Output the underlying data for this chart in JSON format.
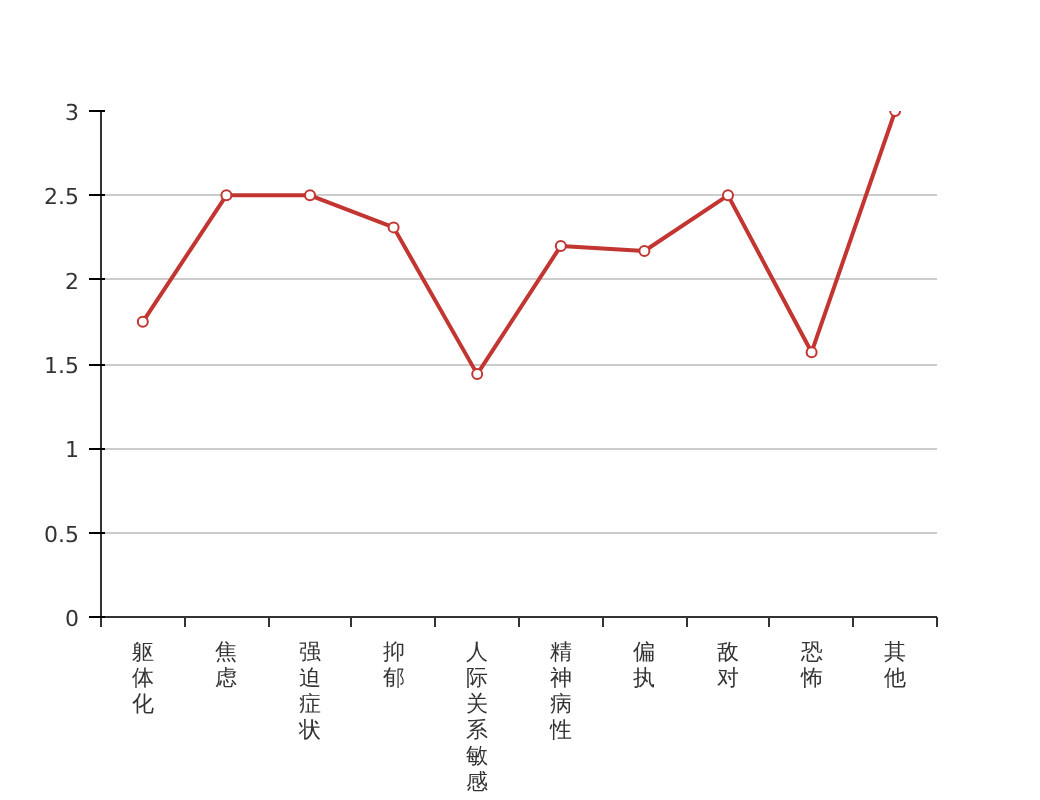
{
  "chart_data": {
    "type": "line",
    "categories": [
      "躯体化",
      "焦虑",
      "强迫症状",
      "抑郁",
      "人际关系敏感",
      "精神病性",
      "偏执",
      "敌对",
      "恐怖",
      "其他"
    ],
    "series": [
      {
        "color": "#c23531",
        "values": [
          1.75,
          2.5,
          2.5,
          2.31,
          1.44,
          2.2,
          2.17,
          2.5,
          1.57,
          3
        ]
      }
    ],
    "ylim": [
      0,
      3
    ],
    "yticks": [
      0,
      0.5,
      1,
      1.5,
      2,
      2.5,
      3
    ],
    "grid": "y",
    "marker": "circle",
    "line_style": "solid"
  }
}
